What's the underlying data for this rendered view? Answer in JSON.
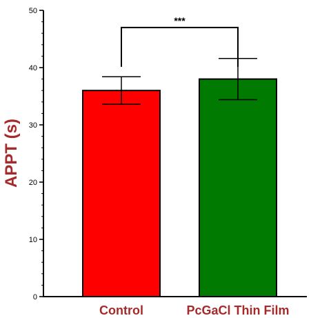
{
  "chart_data": {
    "type": "bar",
    "ylabel": "APPT (s)",
    "xlabel": "",
    "ylim": [
      0,
      50
    ],
    "yticks": [
      0,
      10,
      20,
      30,
      40,
      50
    ],
    "categories": [
      "Control",
      "PcGaCl Thin Film"
    ],
    "values": [
      36.0,
      38.0
    ],
    "error_low": [
      33.6,
      34.4
    ],
    "error_high": [
      38.4,
      41.6
    ],
    "bar_colors": [
      "#ff0000",
      "#007a00"
    ],
    "label_color": "#a52a2a",
    "significance": {
      "label": "***",
      "between": [
        0,
        1
      ]
    },
    "grid": false,
    "legend": "none"
  }
}
